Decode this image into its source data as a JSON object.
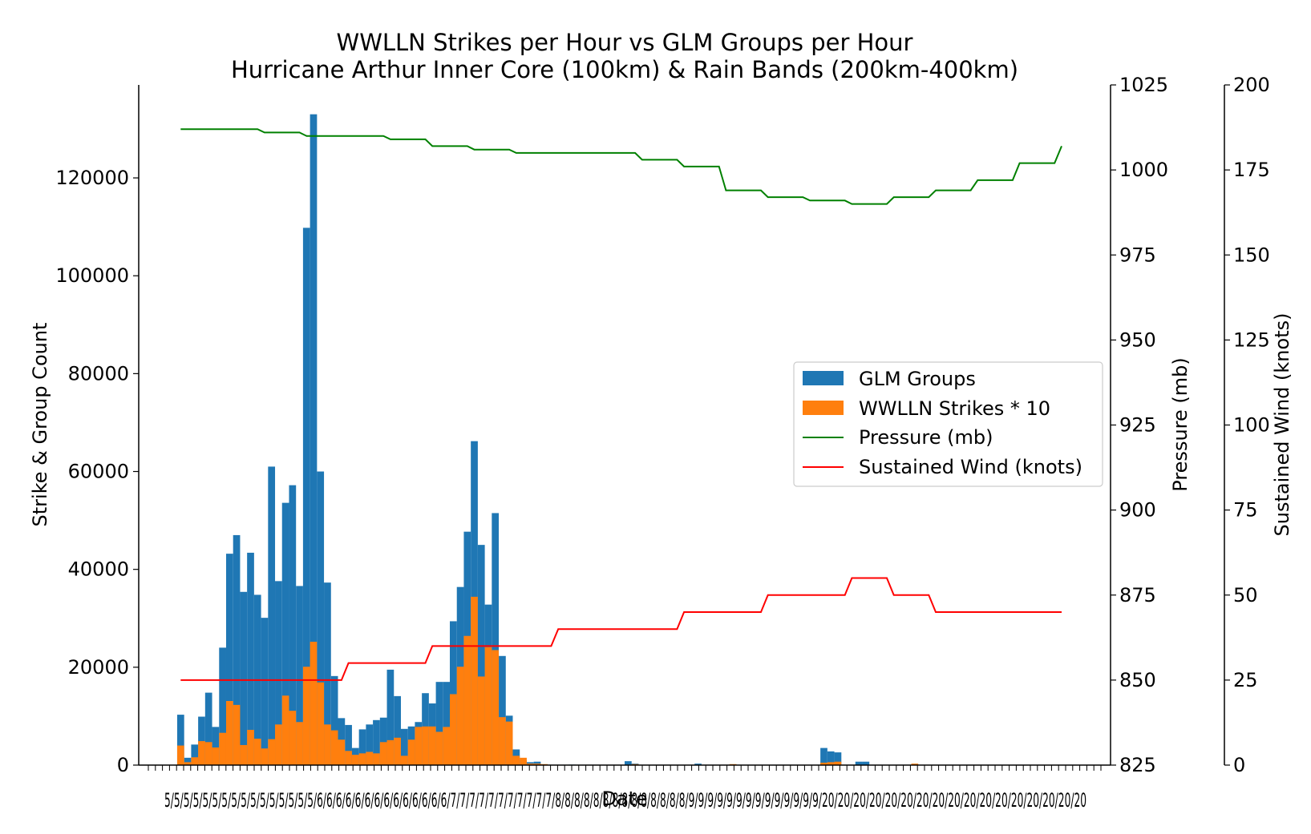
{
  "chart_data": {
    "type": "bar",
    "title": "WWLLN Strikes per Hour vs GLM Groups per Hour",
    "subtitle": "Hurricane Arthur Inner Core (100km) & Rain Bands (200km-400km)",
    "xlabel": "Date",
    "ylabel": "Strike & Group Count",
    "y2label": "Pressure (mb)",
    "y3label": "Sustained Wind (knots)",
    "xlim": [
      -6,
      133
    ],
    "ylim": [
      0,
      139000
    ],
    "y2lim": [
      825,
      1025
    ],
    "y3lim": [
      0,
      200
    ],
    "y_ticks": [
      "0",
      "20000",
      "40000",
      "60000",
      "80000",
      "100000",
      "120000"
    ],
    "y2_ticks": [
      "825",
      "850",
      "875",
      "900",
      "925",
      "950",
      "975",
      "1000",
      "1025"
    ],
    "y3_ticks": [
      "0",
      "25",
      "50",
      "75",
      "100",
      "125",
      "150",
      "175",
      "200"
    ],
    "x_tick_labels_text": "5/5/5/5/5/5/5/5/5/5/5/5/5/5/5/5/6/6/6/6/6/6/6/6/6/6/6/6/6/6/7/7/7/7/7/7/7/7/7/7/7/8/8/8/8/8/8/8/8/8/8/8/8/8/8/9/9/9/9/9/9/9/9/9/9/9/9/9/9/20/20/20/20/20/20/20/20/20/20/20/20/20/20/20/20/20",
    "x_tick_count": 136,
    "legend": {
      "placement": "center-right",
      "entries": [
        {
          "label": "GLM Groups",
          "kind": "patch",
          "color": "#1f77b4"
        },
        {
          "label": "WWLLN Strikes * 10",
          "kind": "patch",
          "color": "#ff7f0e"
        },
        {
          "label": "Pressure (mb)",
          "kind": "line",
          "color": "#008000"
        },
        {
          "label": "Sustained Wind (knots)",
          "kind": "line",
          "color": "#ff0000"
        }
      ]
    },
    "colors": {
      "glm": "#1f77b4",
      "wwlln": "#ff7f0e",
      "pressure": "#008000",
      "wind": "#ff0000",
      "pressure_label": "#008000",
      "wind_label": "#ff0000"
    },
    "series": [
      {
        "name": "GLM Groups",
        "values": [
          10300,
          1500,
          4200,
          9900,
          14800,
          7800,
          24000,
          43200,
          47000,
          35400,
          43400,
          34800,
          30100,
          61000,
          37600,
          53600,
          57200,
          36600,
          109800,
          133000,
          60000,
          37300,
          18200,
          9600,
          8200,
          3500,
          7300,
          8300,
          9200,
          9700,
          19500,
          14100,
          7400,
          7900,
          8800,
          14700,
          12600,
          17000,
          17000,
          29400,
          36400,
          47700,
          66200,
          45000,
          32800,
          51500,
          22300,
          10100,
          3200,
          1000,
          600,
          700,
          0,
          0,
          0,
          0,
          100,
          0,
          0,
          0,
          0,
          0,
          0,
          0,
          800,
          300,
          0,
          0,
          0,
          0,
          0,
          0,
          0,
          0,
          300,
          0,
          0,
          0,
          0,
          0,
          0,
          0,
          0,
          0,
          0,
          0,
          0,
          0,
          0,
          0,
          0,
          0,
          3500,
          2800,
          2600,
          0,
          0,
          700,
          700,
          0,
          0,
          0,
          0,
          0,
          0,
          0,
          0,
          0,
          0,
          0,
          0,
          0,
          0,
          0,
          0,
          0,
          0,
          0,
          0,
          0,
          0,
          0,
          0,
          0,
          0,
          0,
          0
        ]
      },
      {
        "name": "WWLLN Strikes * 10",
        "values": [
          4000,
          600,
          1600,
          4900,
          4700,
          3600,
          6600,
          13100,
          12300,
          4100,
          7200,
          5400,
          3400,
          5300,
          8300,
          14200,
          11100,
          8800,
          20100,
          25200,
          16900,
          8300,
          7100,
          5200,
          2900,
          2100,
          2400,
          2700,
          2400,
          4700,
          5100,
          5600,
          1900,
          5200,
          7800,
          7900,
          7900,
          6800,
          7800,
          14500,
          20100,
          26400,
          34400,
          18100,
          24100,
          23500,
          9800,
          8900,
          1900,
          1500,
          300,
          300,
          200,
          0,
          0,
          0,
          0,
          0,
          0,
          0,
          0,
          0,
          0,
          0,
          0,
          200,
          0,
          0,
          0,
          0,
          0,
          0,
          0,
          0,
          0,
          0,
          0,
          0,
          0,
          200,
          0,
          0,
          0,
          0,
          0,
          0,
          0,
          0,
          0,
          0,
          0,
          0,
          500,
          600,
          700,
          0,
          0,
          0,
          0,
          0,
          0,
          0,
          0,
          0,
          0,
          300,
          0,
          0,
          0,
          0,
          0,
          0,
          0,
          0,
          0,
          0,
          0,
          0,
          0,
          0,
          0,
          0,
          0,
          0,
          0,
          0,
          0,
          0,
          0,
          0,
          0
        ]
      },
      {
        "name": "Pressure (mb)",
        "axis": "right",
        "points": [
          [
            0,
            1012
          ],
          [
            11,
            1012
          ],
          [
            12,
            1011
          ],
          [
            17,
            1011
          ],
          [
            18,
            1010
          ],
          [
            29,
            1010
          ],
          [
            30,
            1009
          ],
          [
            35,
            1009
          ],
          [
            36,
            1007
          ],
          [
            41,
            1007
          ],
          [
            42,
            1006
          ],
          [
            47,
            1006
          ],
          [
            48,
            1005
          ],
          [
            65,
            1005
          ],
          [
            66,
            1003
          ],
          [
            71,
            1003
          ],
          [
            72,
            1001
          ],
          [
            77,
            1001
          ],
          [
            78,
            994
          ],
          [
            83,
            994
          ],
          [
            84,
            992
          ],
          [
            89,
            992
          ],
          [
            90,
            991
          ],
          [
            95,
            991
          ],
          [
            96,
            990
          ],
          [
            101,
            990
          ],
          [
            102,
            992
          ],
          [
            107,
            992
          ],
          [
            108,
            994
          ],
          [
            113,
            994
          ],
          [
            114,
            997
          ],
          [
            119,
            997
          ],
          [
            120,
            1002
          ],
          [
            125,
            1002
          ],
          [
            126,
            1007
          ]
        ]
      },
      {
        "name": "Sustained Wind (knots)",
        "axis": "far-right",
        "points": [
          [
            0,
            25
          ],
          [
            23,
            25
          ],
          [
            24,
            30
          ],
          [
            35,
            30
          ],
          [
            36,
            35
          ],
          [
            53,
            35
          ],
          [
            54,
            40
          ],
          [
            71,
            40
          ],
          [
            72,
            45
          ],
          [
            83,
            45
          ],
          [
            84,
            50
          ],
          [
            95,
            50
          ],
          [
            96,
            55
          ],
          [
            101,
            55
          ],
          [
            102,
            50
          ],
          [
            107,
            50
          ],
          [
            108,
            45
          ],
          [
            126,
            45
          ]
        ]
      }
    ]
  }
}
